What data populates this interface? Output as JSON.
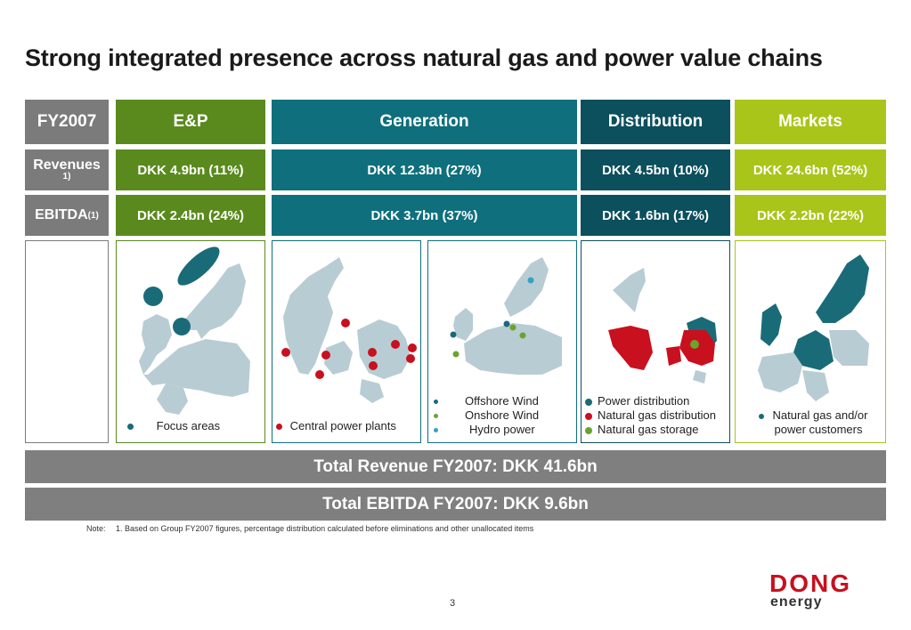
{
  "title": "Strong integrated presence across natural gas and power value chains",
  "header": {
    "fy": "FY2007",
    "ep": "E&P",
    "generation": "Generation",
    "distribution": "Distribution",
    "markets": "Markets"
  },
  "revenues": {
    "label": "Revenues",
    "note": "1)",
    "ep": "DKK 4.9bn (11%)",
    "generation": "DKK 12.3bn (27%)",
    "distribution": "DKK 4.5bn (10%)",
    "markets": "DKK 24.6bn (52%)"
  },
  "ebitda": {
    "label": "EBITDA",
    "note": "(1)",
    "ep": "DKK 2.4bn (24%)",
    "generation": "DKK 3.7bn (37%)",
    "distribution": "DKK 1.6bn (17%)",
    "markets": "DKK 2.2bn (22%)"
  },
  "legends": {
    "ep": "Focus areas",
    "plants": "Central power plants",
    "offshore": "Offshore Wind",
    "onshore": "Onshore Wind",
    "hydro": "Hydro power",
    "power_dist": "Power distribution",
    "gas_dist": "Natural gas distribution",
    "gas_storage": "Natural gas storage",
    "markets_line1": "Natural gas and/or",
    "markets_line2": "power customers"
  },
  "totals": {
    "revenue": "Total Revenue FY2007: DKK 41.6bn",
    "ebitda": "Total EBITDA  FY2007: DKK 9.6bn"
  },
  "note": {
    "label": "Note:",
    "text": "1. Based on Group FY2007 figures, percentage distribution calculated before eliminations and other unallocated items"
  },
  "page_number": "3",
  "logo": {
    "line1": "DONG",
    "line2": "energy"
  },
  "colors": {
    "grey": "#7b7b7b",
    "ep_green": "#5a8a1e",
    "generation_teal": "#0f6f7c",
    "distribution_teal": "#0c4f5d",
    "markets_lime": "#a9c51a",
    "map_fill": "#b8ccd4",
    "marker_red": "#c8101e",
    "marker_teal": "#1a6b78",
    "marker_green": "#6aa42d",
    "marker_cyan": "#3aa0c0"
  }
}
